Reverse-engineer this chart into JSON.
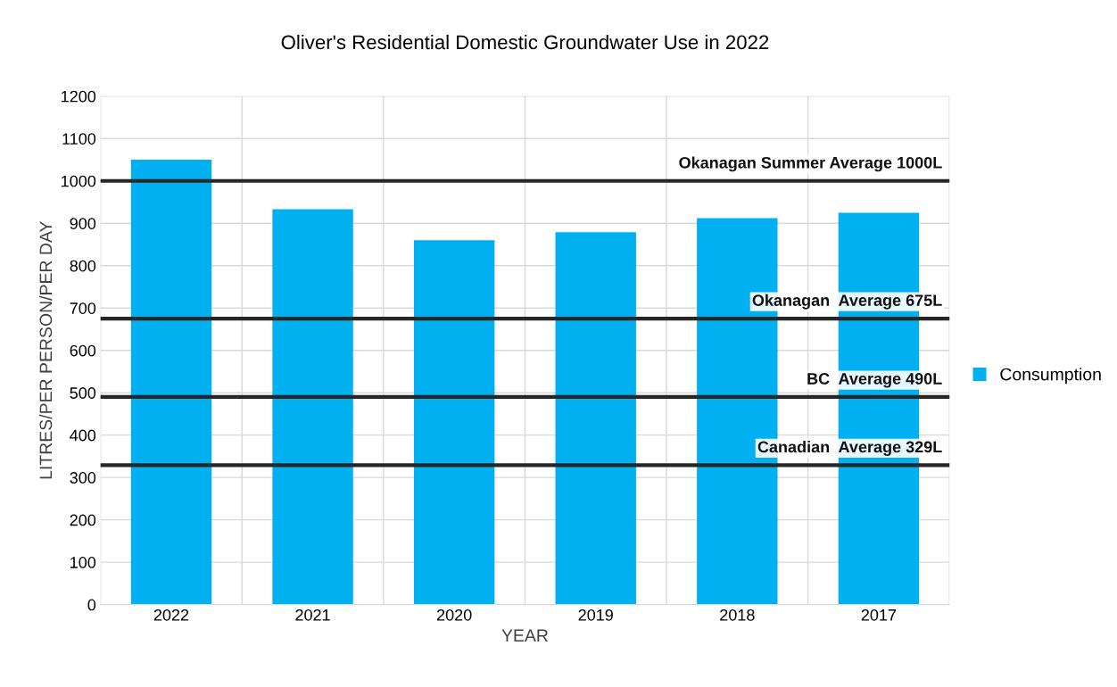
{
  "chart_data": {
    "type": "bar",
    "title": "Oliver's Residential Domestic Groundwater Use in 2022",
    "xlabel": "YEAR",
    "ylabel": "LITRES/PER PERSON/PER DAY",
    "categories": [
      "2022",
      "2021",
      "2020",
      "2019",
      "2018",
      "2017"
    ],
    "series": [
      {
        "name": "Consumption",
        "color": "#00b0f0",
        "values": [
          1050,
          933,
          860,
          879,
          912,
          925
        ]
      }
    ],
    "ylim": [
      0,
      1200
    ],
    "yticks": [
      0,
      100,
      200,
      300,
      400,
      500,
      600,
      700,
      800,
      900,
      1000,
      1100,
      1200
    ],
    "grid": true,
    "legend": "right",
    "ref_lines": [
      {
        "axis": "y",
        "value": 1000,
        "label": "Okanagan Summer Average 1000L",
        "color": "#262626"
      },
      {
        "axis": "y",
        "value": 675,
        "label": "Okanagan  Average 675L",
        "color": "#262626"
      },
      {
        "axis": "y",
        "value": 490,
        "label": "BC  Average 490L",
        "color": "#262626"
      },
      {
        "axis": "y",
        "value": 329,
        "label": "Canadian  Average 329L",
        "color": "#262626"
      }
    ]
  }
}
